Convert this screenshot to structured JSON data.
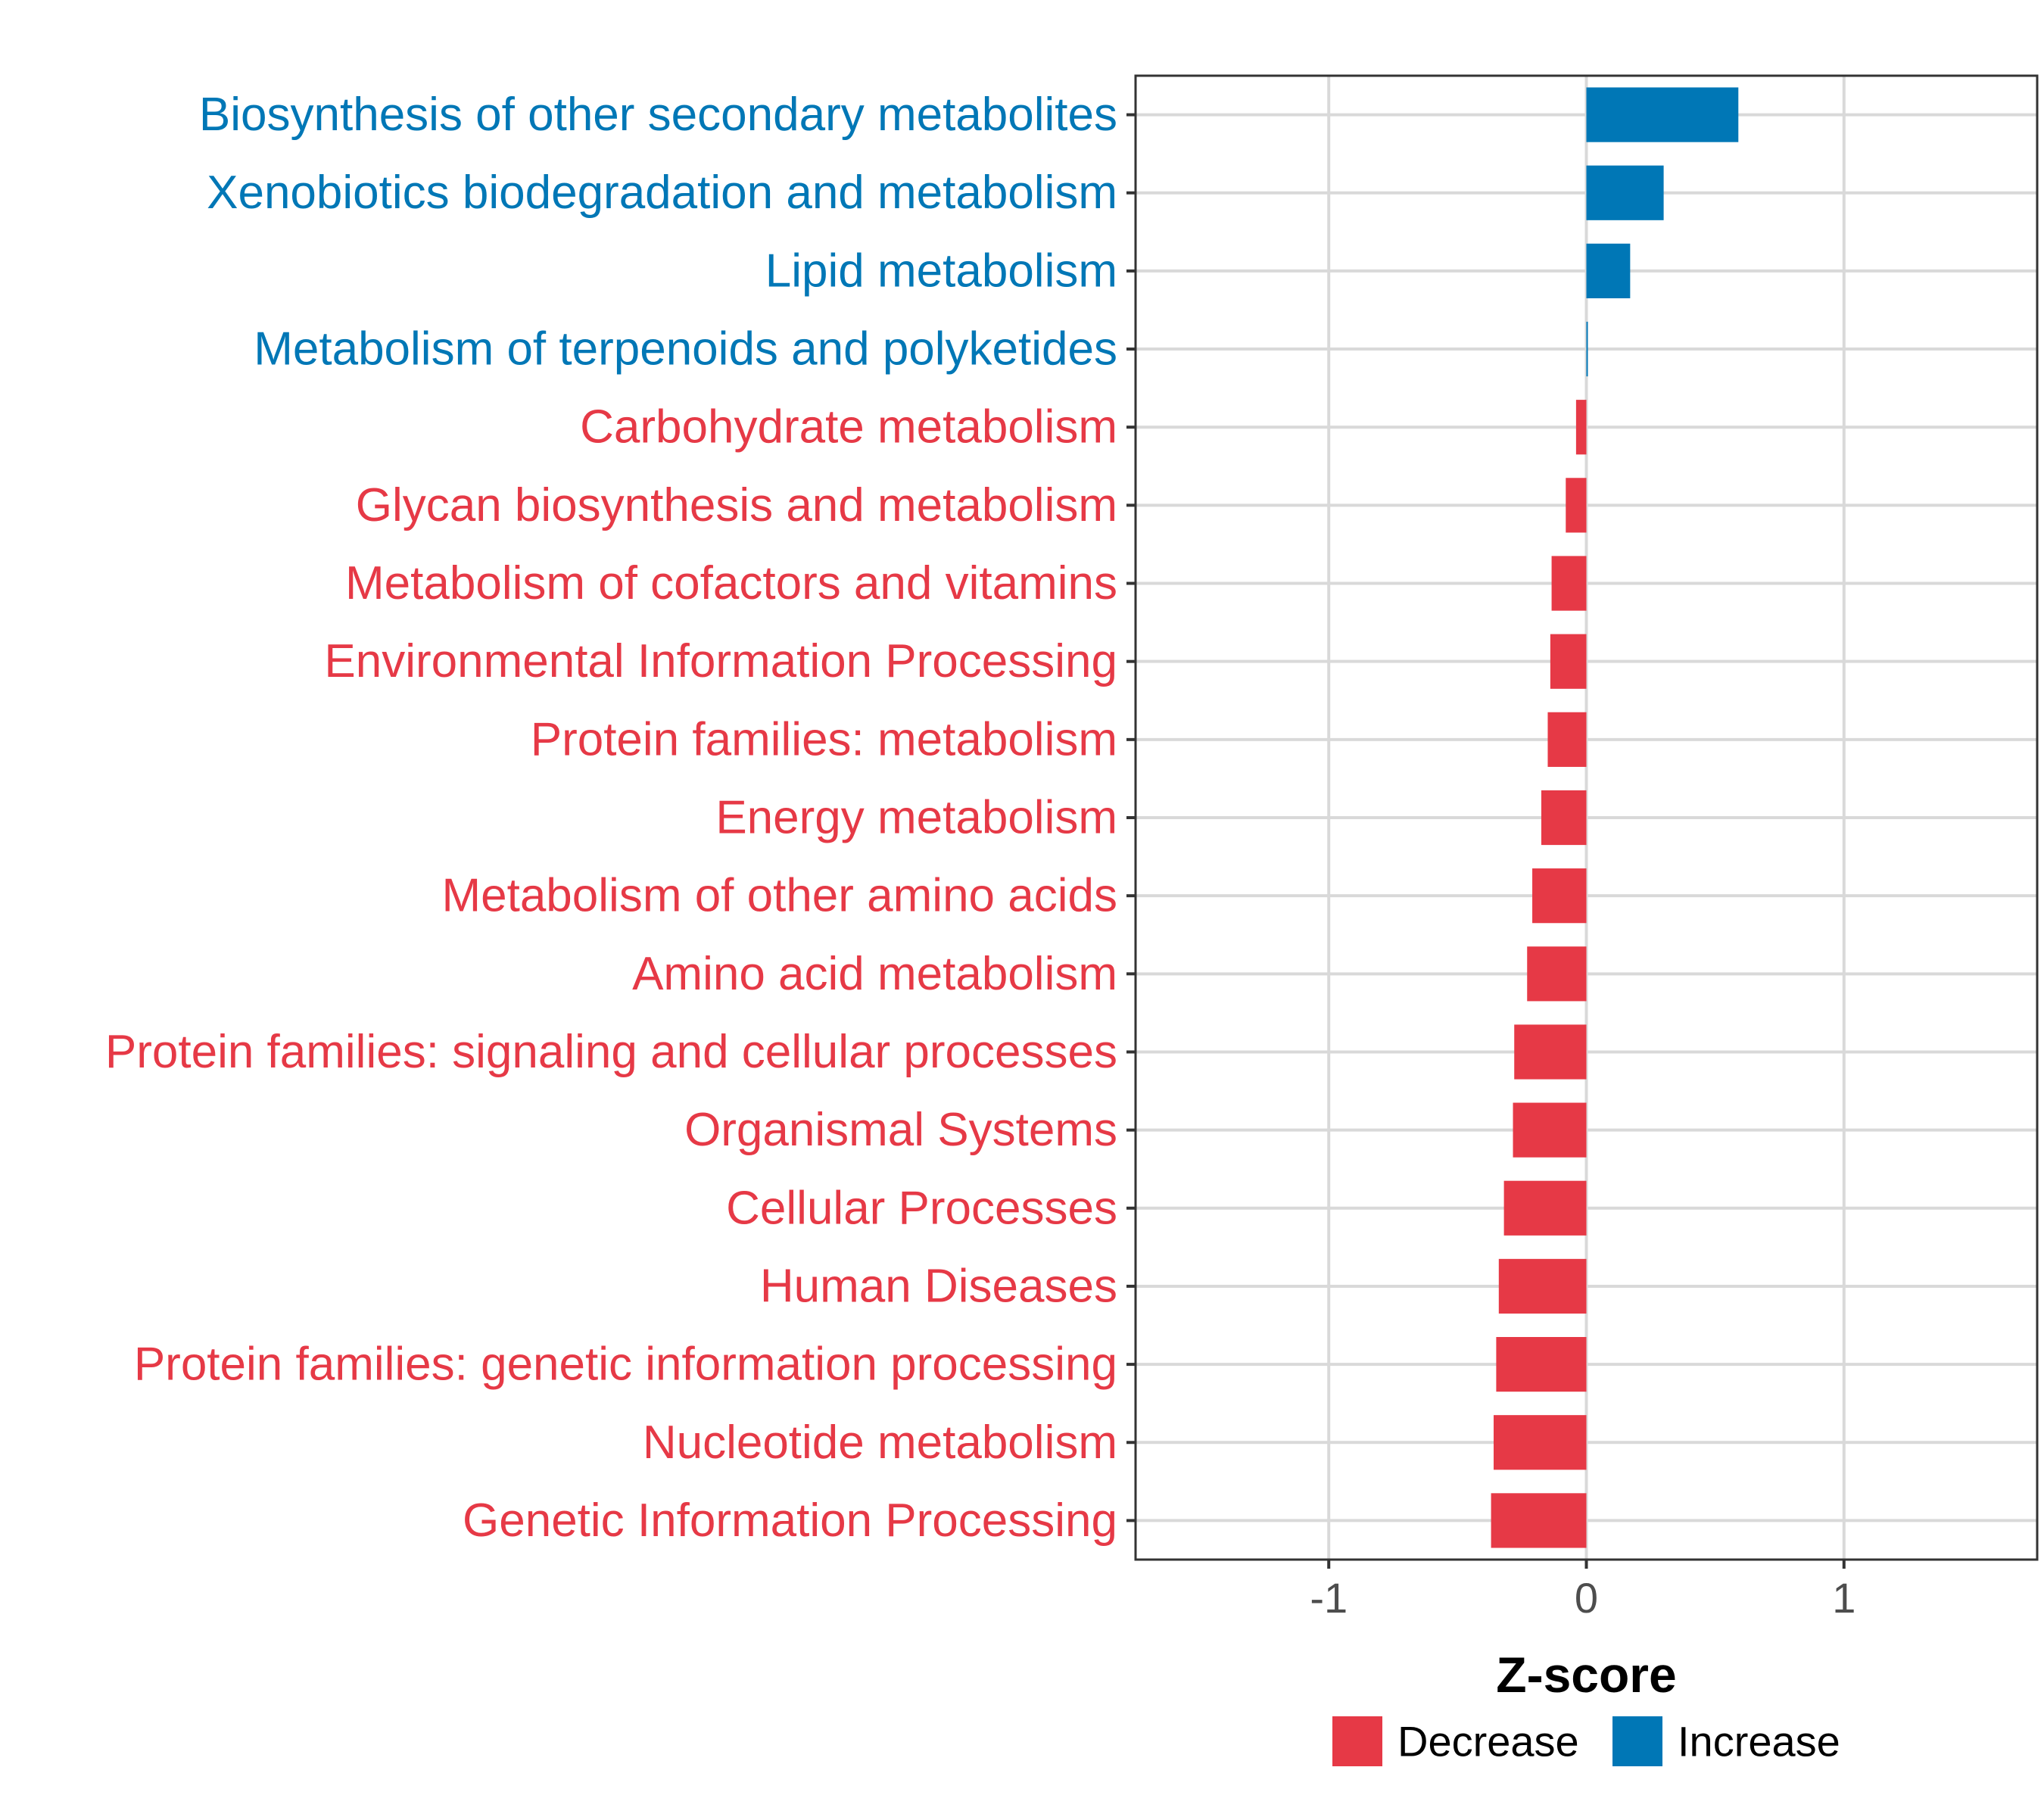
{
  "chart_data": {
    "type": "bar",
    "orientation": "horizontal",
    "title": "",
    "xlabel": "Z-score",
    "ylabel": "",
    "xlim": [
      -1.75,
      1.75
    ],
    "xticks": [
      -1,
      0,
      1
    ],
    "grid": true,
    "legend_position": "bottom",
    "colors": {
      "Decrease": "#e63946",
      "Increase": "#0077b6"
    },
    "legend": [
      "Decrease",
      "Increase"
    ],
    "categories": [
      "Biosynthesis of other secondary metabolites",
      "Xenobiotics biodegradation and metabolism",
      "Lipid metabolism",
      "Metabolism of terpenoids and polyketides",
      "Carbohydrate metabolism",
      "Glycan biosynthesis and metabolism",
      "Metabolism of cofactors and vitamins",
      "Environmental Information Processing",
      "Protein families: metabolism",
      "Energy metabolism",
      "Metabolism of other amino acids",
      "Amino acid metabolism",
      "Protein families: signaling and cellular processes",
      "Organismal Systems",
      "Cellular Processes",
      "Human Diseases",
      "Protein families: genetic information processing",
      "Nucleotide metabolism",
      "Genetic Information Processing"
    ],
    "values": [
      0.59,
      0.3,
      0.17,
      0.005,
      -0.04,
      -0.08,
      -0.135,
      -0.14,
      -0.15,
      -0.175,
      -0.21,
      -0.23,
      -0.28,
      -0.285,
      -0.32,
      -0.34,
      -0.35,
      -0.36,
      -0.37
    ],
    "groups": [
      "Increase",
      "Increase",
      "Increase",
      "Increase",
      "Decrease",
      "Decrease",
      "Decrease",
      "Decrease",
      "Decrease",
      "Decrease",
      "Decrease",
      "Decrease",
      "Decrease",
      "Decrease",
      "Decrease",
      "Decrease",
      "Decrease",
      "Decrease",
      "Decrease"
    ]
  }
}
